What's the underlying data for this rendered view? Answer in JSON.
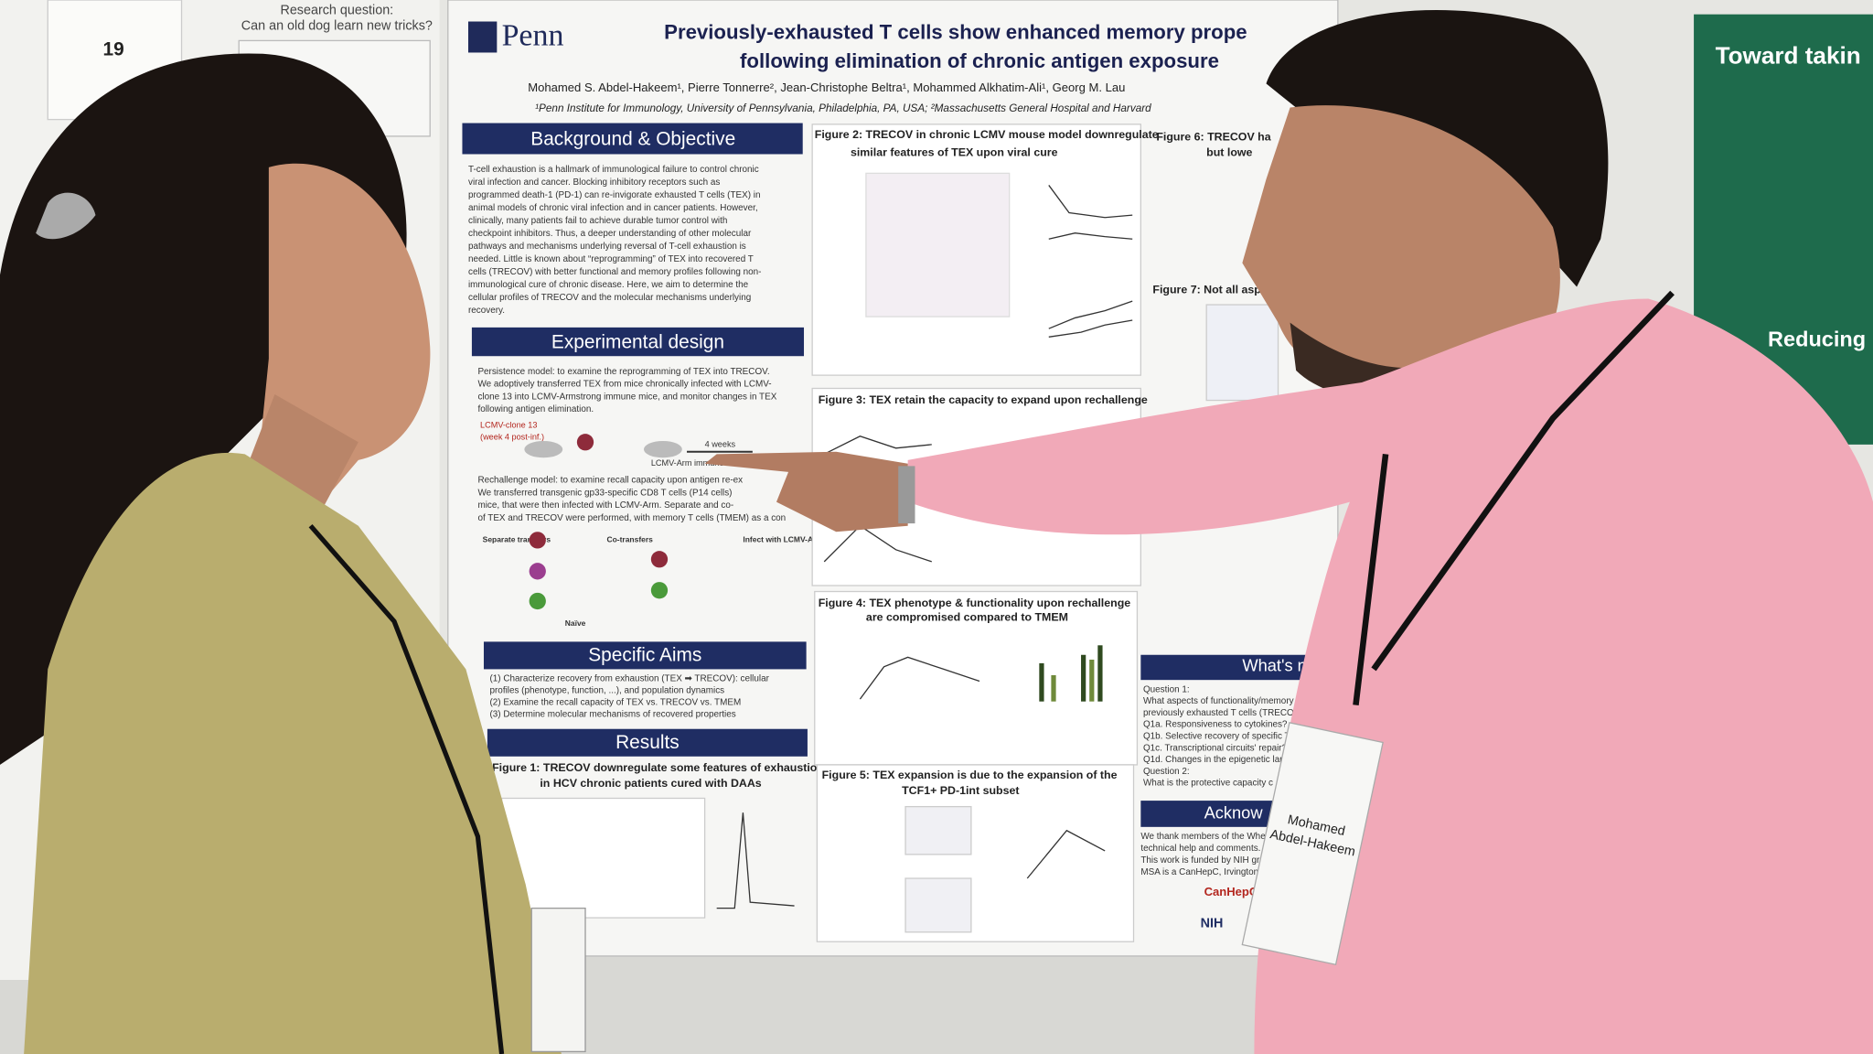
{
  "left_poster": {
    "number": "19",
    "question": [
      "Research question:",
      "Can an old dog learn new tricks?"
    ]
  },
  "poster": {
    "logo": "Penn",
    "title": [
      "Previously-exhausted T cells show enhanced memory prope",
      "following elimination of chronic antigen exposure"
    ],
    "authors": "Mohamed S. Abdel-Hakeem¹, Pierre Tonnerre², Jean-Christophe Beltra¹, Mohammed Alkhatim-Ali¹, Georg M. Lau",
    "affiliation": "¹Penn Institute for Immunology, University of Pennsylvania, Philadelphia, PA, USA; ²Massachusetts General Hospital and Harvard",
    "background": {
      "heading": "Background & Objective",
      "lines": [
        "T-cell exhaustion is a hallmark of immunological failure to control chronic",
        "viral infection and cancer. Blocking inhibitory receptors such as",
        "programmed death-1 (PD-1) can re-invigorate exhausted T cells (TEX) in",
        "animal models of chronic viral infection and in cancer patients. However,",
        "clinically, many patients fail to achieve durable tumor control with",
        "checkpoint inhibitors. Thus, a deeper understanding of other molecular",
        "pathways and mechanisms underlying reversal of T-cell exhaustion is",
        "needed. Little is known about “reprogramming” of TEX into recovered T",
        "cells (TRECOV) with better functional and memory profiles following non-",
        "immunological cure of chronic disease. Here, we aim to determine the",
        "cellular profiles of TRECOV and the molecular mechanisms underlying",
        "recovery."
      ]
    },
    "design": {
      "heading": "Experimental design",
      "persistence": [
        "Persistence model: to examine the reprogramming of TEX into TRECOV.",
        "We adoptively transferred TEX from mice chronically infected with LCMV-",
        "clone 13 into LCMV-Armstrong immune mice, and monitor changes in TEX",
        "following antigen elimination."
      ],
      "diagram": [
        "LCMV-clone 13",
        "(week 4 post-inf.)",
        "4 weeks",
        "LCMV-Arm immune"
      ],
      "rechallenge": [
        "Rechallenge model: to examine recall capacity upon antigen re-ex",
        "We transferred transgenic gp33-specific CD8 T cells (P14 cells)",
        "mice, that were then infected with LCMV-Arm. Separate and co-",
        "of TEX and TRECOV were performed, with memory T cells (TMEM) as a con"
      ],
      "diagram2": [
        "Separate transfers",
        "Co-transfers",
        "Infect with LCMV-Arm next day",
        "Naïve"
      ]
    },
    "aims": {
      "heading": "Specific Aims",
      "lines": [
        "(1) Characterize recovery from exhaustion (TEX ➡ TRECOV): cellular",
        "profiles (phenotype, function, ...), and population dynamics",
        "(2) Examine the recall capacity of TEX vs. TRECOV vs. TMEM",
        "(3) Determine molecular mechanisms of recovered properties"
      ]
    },
    "results": {
      "heading": "Results",
      "figure1": [
        "Figure 1: TRECOV downregulate some features of exhaustion",
        "in HCV chronic patients cured with DAAs"
      ]
    },
    "figure2": [
      "Figure 2: TRECOV in chronic LCMV mouse model downregulate",
      "similar features of TEX upon viral cure"
    ],
    "figure3": "Figure 3: TEX retain the capacity to expand upon rechallenge",
    "figure4": [
      "Figure 4: TEX phenotype & functionality upon rechallenge",
      "are compromised compared to TMEM"
    ],
    "figure5": [
      "Figure 5: TEX expansion is due to the expansion of the",
      "TCF1+ PD-1int subset"
    ],
    "figure6": [
      "Figure 6: TRECOV ha",
      "but lowe"
    ],
    "figure7": "Figure 7: Not all aspe",
    "next": {
      "heading": "What's n",
      "lines": [
        "Question 1:",
        "What aspects of functionality/memory wo",
        "previously exhausted T cells (TRECOV)?",
        "Q1a. Responsiveness to cytokines?",
        "Q1b. Selective recovery of specific T",
        "Q1c. Transcriptional circuits' repair?",
        "Q1d. Changes in the epigenetic lan",
        "Question 2:",
        "What is the protective capacity c"
      ]
    },
    "acknowledgements": {
      "heading": "Acknow",
      "lines": [
        "We thank members of the Wher",
        "technical help and comments.",
        "This work is funded by NIH grar",
        "MSA is a CanHepC, Irvington C"
      ],
      "logos": [
        "CanHepC",
        "NIH"
      ]
    }
  },
  "right_poster": {
    "lines": [
      "Toward takin",
      "Reducing"
    ]
  },
  "name_tag": [
    "Mohamed",
    "Abdel-Hakeem"
  ]
}
